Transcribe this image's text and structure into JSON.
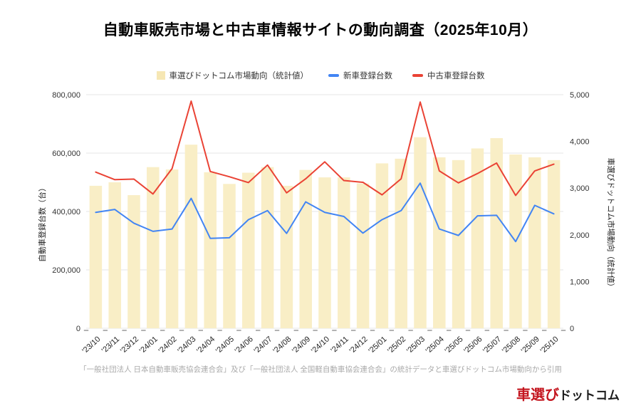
{
  "title": "自動車販売市場と中古車情報サイトの動向調査（2025年10月）",
  "legend": {
    "items": [
      {
        "label": "車選びドットコム市場動向（統計値）",
        "type": "square",
        "color": "#F6E7B4"
      },
      {
        "label": "新車登録台数",
        "type": "line",
        "color": "#4285F4"
      },
      {
        "label": "中古車登録台数",
        "type": "line",
        "color": "#EA4335"
      }
    ]
  },
  "chart_data": {
    "type": "combo",
    "grid": true,
    "legend_position": "top",
    "categories": [
      "'23/10",
      "'23/11",
      "'23/12",
      "'24/01",
      "'24/02",
      "'24/03",
      "'24/04",
      "'24/05",
      "'24/06",
      "'24/07",
      "'24/08",
      "'24/09",
      "'24/10",
      "'24/11",
      "'24/12",
      "'25/01",
      "'25/02",
      "'25/03",
      "'25/04",
      "'25/05",
      "'25/06",
      "'25/07",
      "'25/08",
      "'25/09",
      "'25/10"
    ],
    "series": [
      {
        "name": "車選びドットコム市場動向（統計値）",
        "type": "bar",
        "axis": "right",
        "color": "#F9EEC6",
        "values": [
          3050,
          3125,
          2850,
          3450,
          3400,
          3930,
          3340,
          3090,
          3330,
          3450,
          3050,
          3390,
          3230,
          3230,
          3100,
          3530,
          3630,
          4090,
          3660,
          3600,
          3850,
          4070,
          3720,
          3660,
          3600
        ]
      },
      {
        "name": "新車登録台数",
        "type": "line",
        "axis": "left",
        "color": "#4285F4",
        "values": [
          397000,
          407000,
          360000,
          332000,
          340000,
          445000,
          308000,
          310000,
          372000,
          403000,
          325000,
          433000,
          397000,
          383000,
          326000,
          372000,
          403000,
          497000,
          340000,
          318000,
          385000,
          387000,
          297000,
          421000,
          392000
        ]
      },
      {
        "name": "中古車登録台数",
        "type": "line",
        "axis": "left",
        "color": "#EA4335",
        "values": [
          535000,
          509000,
          511000,
          460000,
          547000,
          778000,
          537000,
          519000,
          499000,
          559000,
          464000,
          512000,
          570000,
          506000,
          500000,
          457000,
          512000,
          775000,
          539000,
          498000,
          530000,
          566000,
          455000,
          539000,
          562000
        ]
      }
    ],
    "left_axis": {
      "title": "自動車登録台数（台）",
      "min": 0,
      "max": 800000,
      "ticks": [
        "0",
        "200,000",
        "400,000",
        "600,000",
        "800,000"
      ]
    },
    "right_axis": {
      "title": "車選びドットコム市場動向（統計値）",
      "min": 0,
      "max": 5000,
      "ticks": [
        "0",
        "1,000",
        "2,000",
        "3,000",
        "4,000",
        "5,000"
      ]
    },
    "colors": {
      "gridline": "#e6e6e6",
      "tick_mark": "#9e9e9e",
      "axis_text": "#333333",
      "x_label_text": "#222222"
    }
  },
  "footer": {
    "source": "「一般社団法人 日本自動車販売協会連合会」及び「一般社団法人 全国軽自動車協会連合会」の統計データと車選びドットコム市場動向から引用"
  },
  "logo": {
    "part1": "車選び",
    "part2": "ドットコム"
  }
}
